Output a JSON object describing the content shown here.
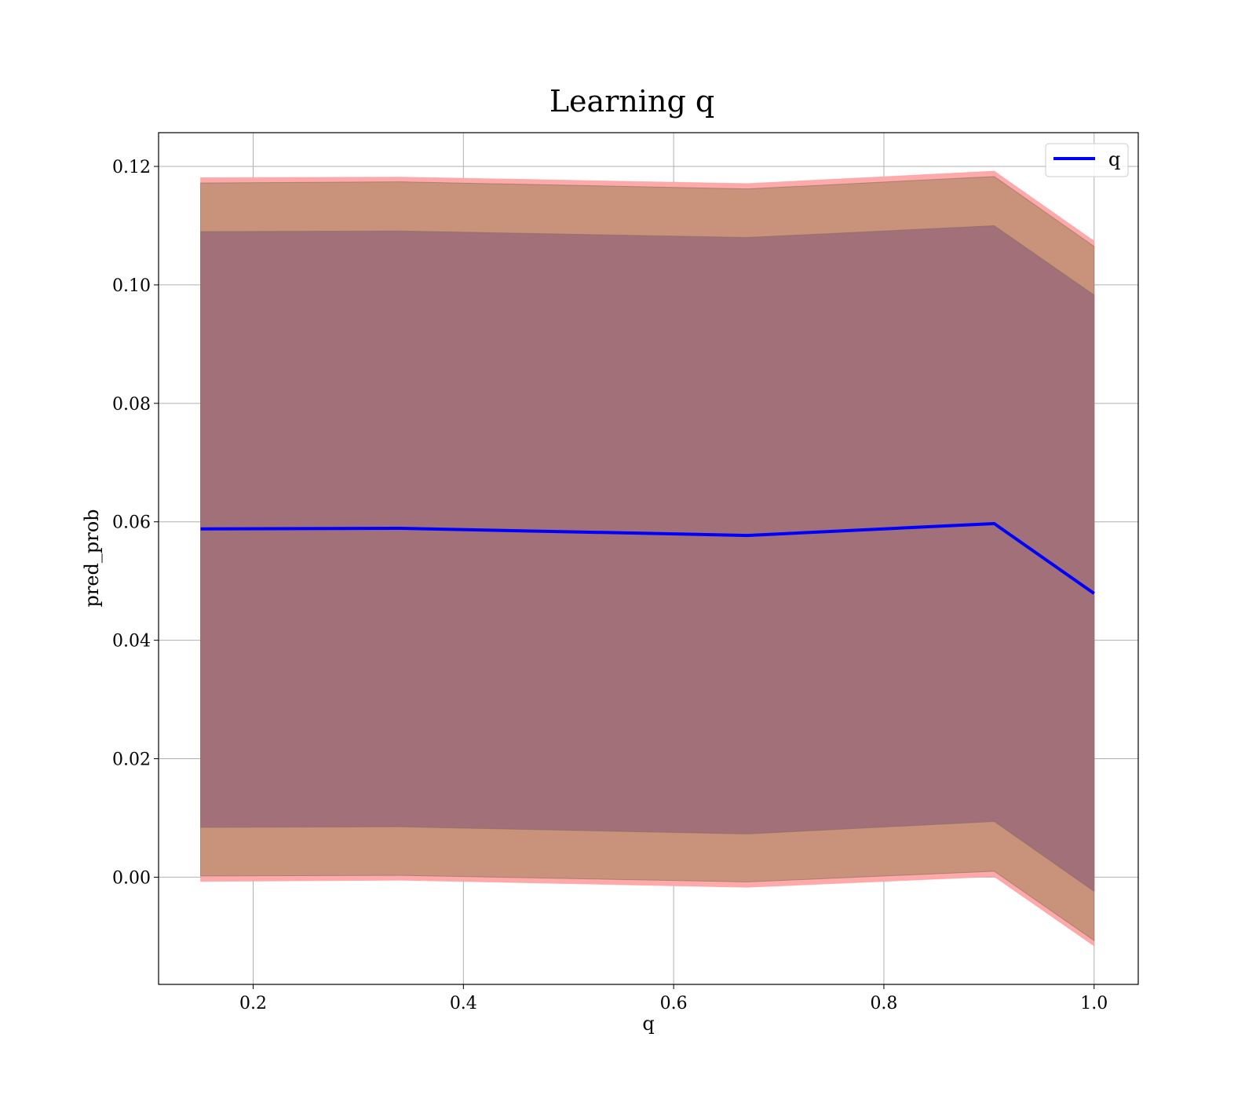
{
  "chart_data": {
    "type": "line",
    "title": "Learning q",
    "xlabel": "q",
    "ylabel": "pred_prob",
    "xlim": [
      0.11,
      1.042
    ],
    "ylim": [
      -0.0181,
      0.1257
    ],
    "x_ticks": [
      "0.2",
      "0.4",
      "0.6",
      "0.8",
      "1.0"
    ],
    "y_ticks": [
      "0.00",
      "0.02",
      "0.04",
      "0.06",
      "0.08",
      "0.10",
      "0.12"
    ],
    "grid": true,
    "legend": {
      "placement": "top-right",
      "entries": [
        "q"
      ]
    },
    "x": [
      0.15,
      0.34,
      0.67,
      0.905,
      1.0
    ],
    "series": [
      {
        "name": "q",
        "values": [
          0.0588,
          0.0589,
          0.0577,
          0.0597,
          0.0479
        ],
        "color": "#0000ff"
      }
    ],
    "bands": [
      {
        "upper": [
          0.1181,
          0.1182,
          0.1171,
          0.1192,
          0.1074
        ],
        "lower": [
          -0.0007,
          -0.0005,
          -0.0017,
          0.0001,
          -0.0116
        ],
        "color": "#ffaaaa"
      },
      {
        "upper": [
          0.1172,
          0.1174,
          0.1162,
          0.1183,
          0.1065
        ],
        "lower": [
          0.0002,
          0.0003,
          -0.0008,
          0.001,
          -0.0107
        ],
        "color": "#c8937a"
      },
      {
        "upper": [
          0.109,
          0.1091,
          0.108,
          0.11,
          0.0983
        ],
        "lower": [
          0.0084,
          0.0085,
          0.0073,
          0.0094,
          -0.0024
        ],
        "color": "#a17079"
      }
    ]
  }
}
